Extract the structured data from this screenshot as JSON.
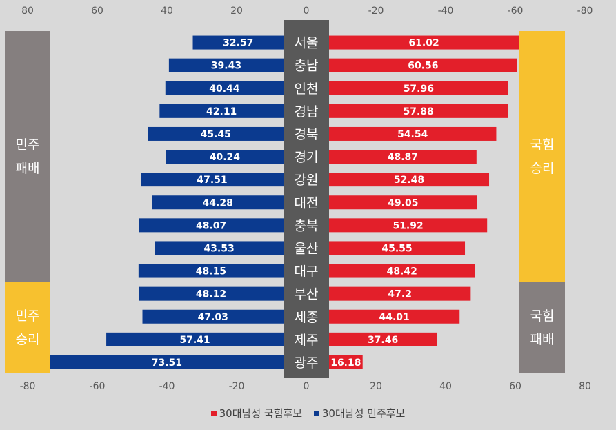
{
  "chart_data": {
    "type": "bar",
    "orientation": "horizontal-diverging",
    "categories": [
      "서울",
      "충남",
      "인천",
      "경남",
      "경북",
      "경기",
      "강원",
      "대전",
      "충북",
      "울산",
      "대구",
      "부산",
      "세종",
      "제주",
      "광주"
    ],
    "series": [
      {
        "name": "30대남성 국힘후보",
        "side": "right",
        "color": "#e31f2a",
        "values": [
          61.02,
          60.56,
          57.96,
          57.88,
          54.54,
          48.87,
          52.48,
          49.05,
          51.92,
          45.55,
          48.42,
          47.2,
          44.01,
          37.46,
          16.18
        ],
        "labels": [
          "61.02",
          "60.56",
          "57.96",
          "57.88",
          "54.54",
          "48.87",
          "52.48",
          "49.05",
          "51.92",
          "45.55",
          "48.42",
          "47.2",
          "44.01",
          "37.46",
          "16.18"
        ]
      },
      {
        "name": "30대남성 민주후보",
        "side": "left",
        "color": "#0b3a8f",
        "values": [
          32.57,
          39.43,
          40.44,
          42.11,
          45.45,
          40.24,
          47.51,
          44.28,
          48.07,
          43.53,
          48.15,
          48.12,
          47.03,
          57.41,
          73.51
        ],
        "labels": [
          "32.57",
          "39.43",
          "40.44",
          "42.11",
          "45.45",
          "40.24",
          "47.51",
          "44.28",
          "48.07",
          "43.53",
          "48.15",
          "48.12",
          "47.03",
          "57.41",
          "73.51"
        ]
      }
    ],
    "xlim": [
      -80,
      80
    ],
    "top_ticks": [
      "80",
      "60",
      "40",
      "20",
      "0",
      "-20",
      "-40",
      "-60",
      "-80"
    ],
    "bottom_ticks": [
      "-80",
      "-60",
      "-40",
      "-20",
      "0",
      "20",
      "40",
      "60",
      "80"
    ],
    "grid": false,
    "legend_position": "bottom",
    "center_band_color": "#595959",
    "side_labels": {
      "left_top": {
        "text": "민주\n패배",
        "color": "#857f7f",
        "rows": 11
      },
      "left_bottom": {
        "text": "민주\n승리",
        "color": "#f7c12f",
        "rows": 4
      },
      "right_top": {
        "text": "국힘\n승리",
        "color": "#f7c12f",
        "rows": 11
      },
      "right_bottom": {
        "text": "국힘\n패배",
        "color": "#857f7f",
        "rows": 4
      }
    }
  },
  "legend": {
    "items": [
      {
        "label": "30대남성 국힘후보",
        "color": "#e31f2a"
      },
      {
        "label": "30대남성 민주후보",
        "color": "#0b3a8f"
      }
    ]
  }
}
